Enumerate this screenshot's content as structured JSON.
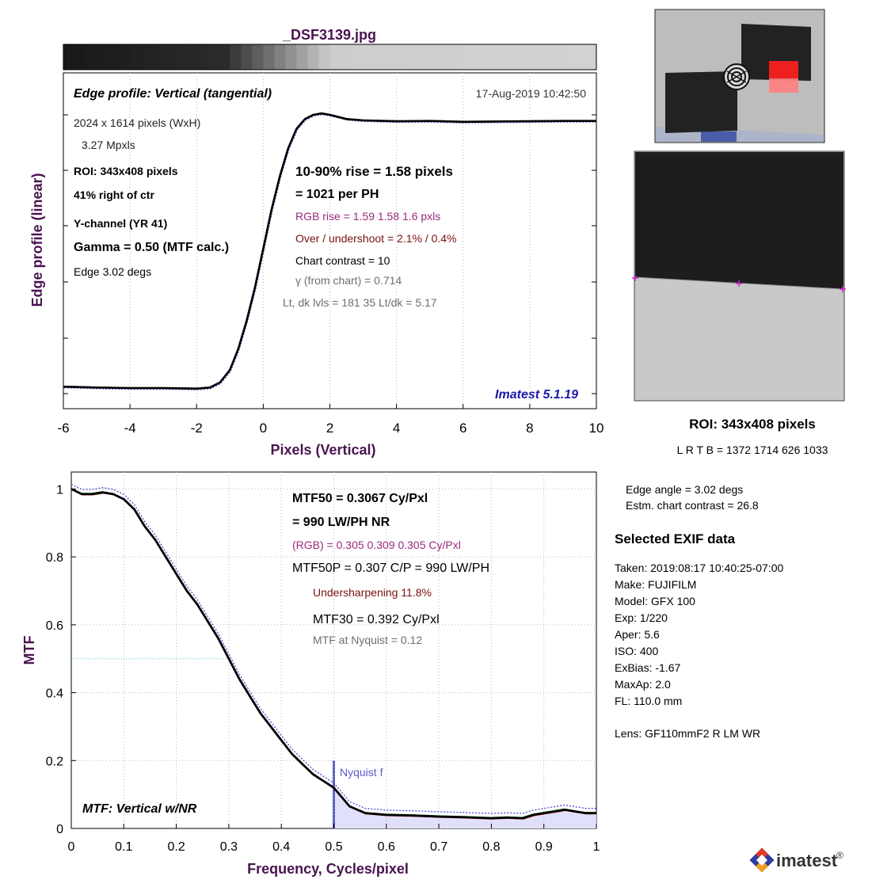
{
  "file_title": "_DSF3139.jpg",
  "colors": {
    "axis_label": "#4a1450",
    "rgb_text": "#9b2a7d",
    "over_text": "#7a1010",
    "gray_text": "#6e6e6e",
    "version_text": "#1a1aa8",
    "nyquist": "#5c5cc8",
    "nyquist_fill": "#e0e0fa",
    "red_series": "#e0302a",
    "green_series": "#1f9a2a",
    "blue_series": "#4a4ad8",
    "mtf50_line": "#56c8e0"
  },
  "edge_panel": {
    "title": "Edge profile: Vertical (tangential)",
    "timestamp": "17-Aug-2019 10:42:50",
    "image_size": "2024 x 1614 pixels (WxH)",
    "mpxls": "3.27 Mpxls",
    "roi": "ROI:  343x408 pixels",
    "position": "41% right of ctr",
    "channel": "Y-channel  (YR 41)",
    "gamma": "Gamma = 0.50 (MTF calc.)",
    "edge": "Edge   3.02 degs",
    "rise": "10-90% rise = 1.58 pixels",
    "per_ph": "=   1021 per PH",
    "rgb_rise": "RGB rise =   1.59    1.58     1.6 pxls",
    "overshoot": "Over / undershoot =  2.1% /  0.4%",
    "chart_contrast": "Chart contrast = 10",
    "gamma_chart": "γ (from chart) = 0.714",
    "levels": "Lt, dk lvls = 181  35  Lt/dk = 5.17",
    "version": "Imatest 5.1.19"
  },
  "mtf_panel": {
    "title": "MTF: Vertical w/NR",
    "mtf50": "MTF50 = 0.3067 Cy/Pxl",
    "lwph": "=  990 LW/PH  NR",
    "rgb": "(RGB) = 0.305  0.309  0.305 Cy/Pxl",
    "mtf50p": "MTF50P = 0.307 C/P = 990 LW/PH",
    "undersharpening": "Undersharpening 11.8%",
    "mtf30": "MTF30 = 0.392 Cy/Pxl",
    "nyquist_value": "MTF at Nyquist = 0.12",
    "nyquist_label": "Nyquist f"
  },
  "roi_info": {
    "title": "ROI:  343x408 pixels",
    "lrtb": "L R  T B = 1372 1714  626 1033",
    "edge_angle": "Edge angle = 3.02 degs",
    "contrast": "Estm. chart contrast = 26.8"
  },
  "exif": {
    "heading": "Selected EXIF data",
    "lines": [
      "Taken: 2019:08:17 10:40:25-07:00",
      "Make:  FUJIFILM",
      "Model:  GFX 100",
      "Exp:    1/220",
      "Aper:   5.6",
      "ISO:    400",
      "ExBias: -1.67",
      "MaxAp: 2.0",
      "FL:     110.0 mm"
    ],
    "lens": "Lens:  GF110mmF2 R LM WR"
  },
  "logo": {
    "text": "imatest",
    "mark": "®"
  },
  "chart_data": [
    {
      "type": "line",
      "title": "Edge profile: Vertical (tangential)",
      "xlabel": "Pixels (Vertical)",
      "ylabel": "Edge profile (linear)",
      "xlim": [
        -6,
        10
      ],
      "ylim": [
        0,
        1
      ],
      "xticks": [
        -6,
        -4,
        -2,
        0,
        2,
        4,
        6,
        8,
        10
      ],
      "grid": true,
      "series": [
        {
          "color": "#000000",
          "x": [
            -6,
            -5,
            -4,
            -3,
            -2.5,
            -2,
            -1.6,
            -1.3,
            -1,
            -0.75,
            -0.5,
            -0.25,
            0,
            0.25,
            0.5,
            0.75,
            1,
            1.25,
            1.5,
            1.75,
            2,
            2.5,
            3,
            4,
            5,
            6,
            7,
            8,
            9,
            10
          ],
          "y": [
            0.025,
            0.022,
            0.02,
            0.02,
            0.019,
            0.018,
            0.022,
            0.04,
            0.085,
            0.16,
            0.26,
            0.38,
            0.52,
            0.66,
            0.78,
            0.88,
            0.95,
            0.985,
            1.0,
            1.005,
            1.0,
            0.985,
            0.98,
            0.977,
            0.978,
            0.975,
            0.976,
            0.977,
            0.978,
            0.978
          ]
        }
      ]
    },
    {
      "type": "line",
      "title": "MTF: Vertical w/NR",
      "xlabel": "Frequency, Cycles/pixel",
      "ylabel": "MTF",
      "xlim": [
        0,
        1
      ],
      "ylim": [
        0,
        1.05
      ],
      "xticks": [
        0,
        0.1,
        0.2,
        0.3,
        0.4,
        0.5,
        0.6,
        0.7,
        0.8,
        0.9,
        1
      ],
      "yticks": [
        0,
        0.2,
        0.4,
        0.6,
        0.8,
        1
      ],
      "nyquist": 0.5,
      "mtf50_level": 0.5,
      "grid": true,
      "series": [
        {
          "color": "#000000",
          "x": [
            0,
            0.02,
            0.04,
            0.06,
            0.08,
            0.1,
            0.12,
            0.14,
            0.16,
            0.18,
            0.2,
            0.22,
            0.24,
            0.26,
            0.28,
            0.3,
            0.32,
            0.34,
            0.36,
            0.38,
            0.4,
            0.42,
            0.44,
            0.46,
            0.48,
            0.5,
            0.53,
            0.56,
            0.6,
            0.65,
            0.7,
            0.75,
            0.8,
            0.83,
            0.86,
            0.88,
            0.9,
            0.92,
            0.94,
            0.96,
            0.98,
            1
          ],
          "y": [
            1.0,
            0.985,
            0.985,
            0.99,
            0.985,
            0.97,
            0.94,
            0.89,
            0.85,
            0.8,
            0.75,
            0.7,
            0.66,
            0.61,
            0.56,
            0.5,
            0.44,
            0.39,
            0.34,
            0.3,
            0.26,
            0.22,
            0.19,
            0.16,
            0.14,
            0.12,
            0.065,
            0.045,
            0.04,
            0.038,
            0.035,
            0.033,
            0.03,
            0.032,
            0.03,
            0.04,
            0.045,
            0.05,
            0.055,
            0.05,
            0.045,
            0.045
          ]
        }
      ]
    }
  ]
}
